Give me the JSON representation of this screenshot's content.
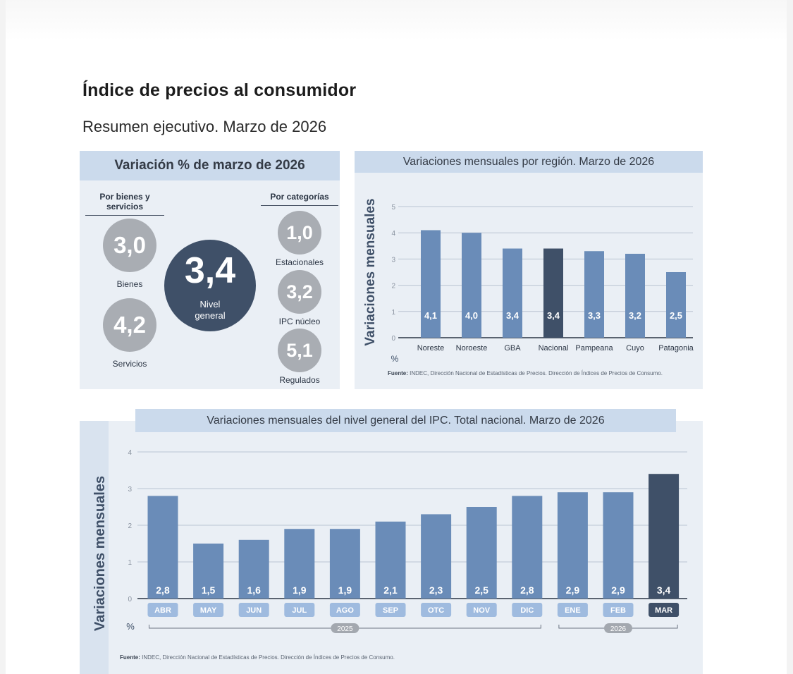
{
  "document": {
    "title": "Índice de precios al consumidor",
    "subtitle": "Resumen ejecutivo. Marzo de 2026"
  },
  "summary_panel": {
    "title": "Variación % de marzo de 2026",
    "left_heading": "Por bienes y servicios",
    "right_heading": "Por categorías",
    "general": {
      "value": "3,4",
      "label_line1": "Nivel",
      "label_line2": "general"
    },
    "bienes": {
      "value": "3,0",
      "label": "Bienes"
    },
    "servicios": {
      "value": "4,2",
      "label": "Servicios"
    },
    "estacionales": {
      "value": "1,0",
      "label": "Estacionales"
    },
    "ipc_nucleo": {
      "value": "3,2",
      "label": "IPC núcleo"
    },
    "regulados": {
      "value": "5,1",
      "label": "Regulados"
    }
  },
  "colors": {
    "bar_regular": "#6a8cb8",
    "bar_highlight": "#3f5068",
    "panel_bg": "#eaeff5",
    "panel_header": "#cbdaec",
    "bubble_gray": "#a9adb3",
    "month_tag": "#9fbbdf"
  },
  "chart_data": [
    {
      "type": "bar",
      "title": "Variaciones mensuales por región. Marzo de 2026",
      "ylabel": "Variaciones mensuales",
      "yunit": "%",
      "ylim": [
        0,
        5
      ],
      "yticks": [
        0,
        1,
        2,
        3,
        4,
        5
      ],
      "grid": true,
      "categories": [
        "Noreste",
        "Noroeste",
        "GBA",
        "Nacional",
        "Pampeana",
        "Cuyo",
        "Patagonia"
      ],
      "values": [
        4.1,
        4.0,
        3.4,
        3.4,
        3.3,
        3.2,
        2.5
      ],
      "value_labels": [
        "4,1",
        "4,0",
        "3,4",
        "3,4",
        "3,3",
        "3,2",
        "2,5"
      ],
      "highlight": "Nacional",
      "source_label": "Fuente:",
      "source": "INDEC, Dirección Nacional de Estadísticas de Precios. Dirección de Índices de Precios de Consumo."
    },
    {
      "type": "bar",
      "title": "Variaciones mensuales del nivel general del IPC. Total nacional. Marzo de 2026",
      "ylabel": "Variaciones mensuales",
      "yunit": "%",
      "ylim": [
        0,
        4
      ],
      "yticks": [
        0,
        1,
        2,
        3,
        4
      ],
      "grid": true,
      "categories": [
        "ABR",
        "MAY",
        "JUN",
        "JUL",
        "AGO",
        "SEP",
        "OTC",
        "NOV",
        "DIC",
        "ENE",
        "FEB",
        "MAR"
      ],
      "values": [
        2.8,
        1.5,
        1.6,
        1.9,
        1.9,
        2.1,
        2.3,
        2.5,
        2.8,
        2.9,
        2.9,
        3.4
      ],
      "value_labels": [
        "2,8",
        "1,5",
        "1,6",
        "1,9",
        "1,9",
        "2,1",
        "2,3",
        "2,5",
        "2,8",
        "2,9",
        "2,9",
        "3,4"
      ],
      "highlight": "MAR",
      "year_groups": [
        {
          "label": "2025",
          "months": [
            "ABR",
            "MAY",
            "JUN",
            "JUL",
            "AGO",
            "SEP",
            "OTC",
            "NOV",
            "DIC"
          ]
        },
        {
          "label": "2026",
          "months": [
            "ENE",
            "FEB",
            "MAR"
          ]
        }
      ],
      "source_label": "Fuente:",
      "source": "INDEC, Dirección Nacional de Estadísticas de Precios. Dirección de Índices de Precios de Consumo."
    }
  ]
}
